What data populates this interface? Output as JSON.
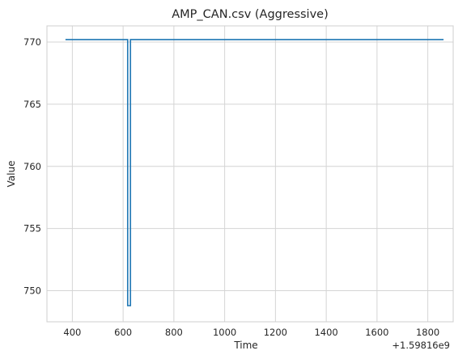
{
  "chart_data": {
    "type": "line",
    "title": "AMP_CAN.csv (Aggressive)",
    "xlabel": "Time",
    "ylabel": "Value",
    "x_offset_label": "+1.59816e9",
    "xlim": [
      300,
      1900
    ],
    "ylim": [
      747.5,
      771.3
    ],
    "xticks": [
      400,
      600,
      800,
      1000,
      1200,
      1400,
      1600,
      1800
    ],
    "yticks": [
      750,
      755,
      760,
      765,
      770
    ],
    "grid": true,
    "style": "seaborn-whitegrid",
    "series": [
      {
        "color": "#1f77b4",
        "x": [
          373,
          618,
          618,
          629,
          629,
          1862
        ],
        "y": [
          770.2,
          770.2,
          748.8,
          748.8,
          770.2,
          770.2
        ]
      }
    ]
  }
}
